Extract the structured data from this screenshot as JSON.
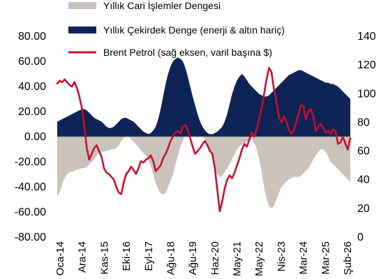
{
  "chart_data": {
    "type": "area",
    "left_axis": {
      "ylim": [
        -80,
        80
      ],
      "tick_labels": [
        "80.00",
        "60.00",
        "40.00",
        "20.00",
        "0.00",
        "-20.00",
        "-40.00",
        "-60.00",
        "-80.00"
      ]
    },
    "right_axis": {
      "ylim": [
        0,
        140
      ],
      "tick_labels": [
        "140",
        "120",
        "100",
        "80",
        "60",
        "40",
        "20",
        "0"
      ]
    },
    "x_tick_labels": [
      "Oca-14",
      "Ara-14",
      "Kas-15",
      "Eki-16",
      "Eyl-17",
      "Ağu-18",
      "Ağu-19",
      "Haz-20",
      "May-21",
      "May-22",
      "Nis-23",
      "Mar-24",
      "Mar-25",
      "Şub-26"
    ],
    "legend": [
      {
        "label": "Yıllık Cari İşlemler Dengesi",
        "color": "#C9C3BB"
      },
      {
        "label": "Yıllık Çekirdek Denge (enerji & altın hariç)",
        "color": "#0F2456"
      },
      {
        "label": "Brent Petrol (sağ eksen, varil başına $)",
        "color": "#C8102E"
      }
    ],
    "series": [
      {
        "name": "Yıllık Cari İşlemler Dengesi",
        "axis": "left",
        "values": [
          -48,
          -44,
          -38,
          -33,
          -30,
          -28,
          -28,
          -27,
          -26,
          -26,
          -25,
          -25,
          -24,
          -22,
          -20,
          -18,
          -15,
          -13,
          -12,
          -12,
          -11,
          -11,
          -10,
          -10,
          -9,
          -7,
          -3,
          -1,
          0,
          0,
          -2,
          -4,
          -6,
          -8,
          -11,
          -13,
          -15,
          -18,
          -23,
          -30,
          -37,
          -42,
          -45,
          -46,
          -45,
          -40,
          -35,
          -30,
          -22,
          -15,
          -8,
          -3,
          1,
          3,
          4,
          5,
          4,
          3,
          2,
          0,
          -2,
          -5,
          -10,
          -18,
          -25,
          -30,
          -32,
          -31,
          -28,
          -25,
          -22,
          -18,
          -14,
          -10,
          -8,
          -6,
          -5,
          -4,
          -3,
          -2,
          -5,
          -10,
          -18,
          -28,
          -40,
          -50,
          -55,
          -57,
          -55,
          -50,
          -45,
          -40,
          -38,
          -36,
          -34,
          -33,
          -32,
          -32,
          -32,
          -31,
          -29,
          -27,
          -25,
          -22,
          -18,
          -15,
          -12,
          -10,
          -10,
          -12,
          -16,
          -20,
          -22,
          -24,
          -26,
          -28,
          -30,
          -32,
          -34,
          -36
        ],
        "start": "2014-01",
        "end": "2026-02"
      },
      {
        "name": "Yıllık Çekirdek Denge (enerji & altın hariç)",
        "axis": "left",
        "values": [
          12,
          13,
          14,
          15,
          16,
          17,
          18,
          19,
          20,
          21,
          22,
          22,
          21,
          19,
          17,
          15,
          14,
          13,
          12,
          10,
          8,
          7,
          7,
          8,
          10,
          12,
          14,
          15,
          15,
          14,
          13,
          12,
          10,
          8,
          6,
          4,
          3,
          2,
          3,
          5,
          8,
          14,
          22,
          32,
          42,
          50,
          56,
          60,
          62,
          63,
          62,
          60,
          55,
          48,
          40,
          32,
          25,
          18,
          12,
          8,
          5,
          3,
          2,
          2,
          3,
          4,
          6,
          8,
          12,
          18,
          26,
          34,
          40,
          45,
          48,
          50,
          48,
          45,
          42,
          40,
          38,
          36,
          34,
          33,
          32,
          32,
          33,
          35,
          37,
          39,
          41,
          43,
          45,
          47,
          49,
          50,
          51,
          52,
          53,
          53,
          52,
          51,
          50,
          49,
          48,
          47,
          46,
          45,
          44,
          43,
          43,
          42,
          42,
          41,
          40,
          38,
          36,
          34,
          32,
          30
        ],
        "start": "2014-01",
        "end": "2026-02"
      },
      {
        "name": "Brent Petrol (sağ eksen, varil başına $)",
        "axis": "right",
        "values": [
          107,
          109,
          108,
          110,
          108,
          106,
          105,
          108,
          104,
          98,
          90,
          78,
          62,
          54,
          58,
          62,
          64,
          60,
          56,
          48,
          45,
          44,
          42,
          40,
          35,
          31,
          30,
          38,
          44,
          46,
          49,
          47,
          44,
          48,
          53,
          52,
          54,
          55,
          57,
          53,
          46,
          48,
          50,
          55,
          58,
          62,
          67,
          70,
          73,
          74,
          72,
          77,
          78,
          75,
          69,
          63,
          58,
          60,
          62,
          65,
          67,
          64,
          60,
          58,
          48,
          33,
          18,
          25,
          34,
          40,
          43,
          41,
          45,
          50,
          55,
          61,
          65,
          63,
          68,
          73,
          70,
          75,
          83,
          90,
          100,
          110,
          118,
          115,
          103,
          95,
          84,
          80,
          84,
          81,
          75,
          72,
          74,
          80,
          86,
          92,
          91,
          82,
          88,
          89,
          84,
          74,
          77,
          79,
          76,
          73,
          74,
          72,
          75,
          74,
          65,
          66,
          70,
          65,
          61,
          69
        ],
        "start": "2014-01",
        "end": "2026-02"
      }
    ]
  }
}
